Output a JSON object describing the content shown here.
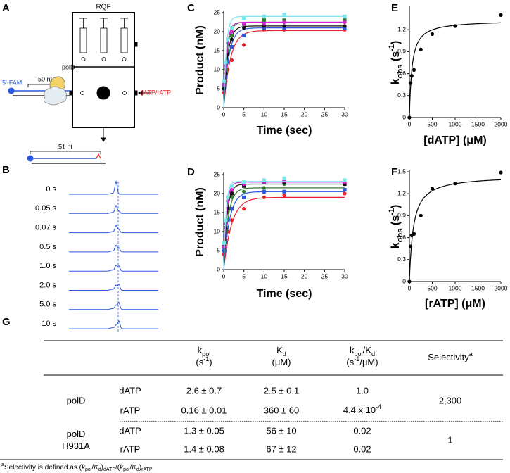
{
  "panel_labels": [
    "A",
    "B",
    "C",
    "D",
    "E",
    "F",
    "G"
  ],
  "diagram": {
    "instrument": "RQF",
    "label": "5'-FAM",
    "template_length": "50 nt",
    "enzyme": "polD",
    "nucleotide": "dATP/rATP",
    "product_length": "51 nt"
  },
  "gel_traces": {
    "labels": [
      "0 s",
      "0.05 s",
      "0.07 s",
      "0.5 s",
      "1.0 s",
      "2.0 s",
      "5.0 s",
      "10 s"
    ]
  },
  "chart_data": [
    {
      "type": "scatter",
      "fit_model": "exponential",
      "xlabel": "Time (sec)",
      "ylabel": "Product (nM)",
      "x": [
        0.05,
        0.5,
        1,
        2,
        5,
        10,
        15,
        30
      ],
      "xlim": [
        0,
        30
      ],
      "xticks": [
        0,
        5,
        10,
        15,
        20,
        25,
        30
      ],
      "ylim": [
        0,
        25
      ],
      "yticks": [
        0,
        5,
        10,
        15,
        20,
        25
      ],
      "series": [
        {
          "color": "#e8212a",
          "values": [
            4,
            7,
            10,
            12.5,
            16.5,
            20.5,
            20.5,
            20.5
          ],
          "fit": {
            "amplitude": 20.3,
            "rate": 0.6
          }
        },
        {
          "color": "#2a57e0",
          "values": [
            5,
            8,
            12,
            16,
            19,
            21,
            21,
            21
          ],
          "fit": {
            "amplitude": 21,
            "rate": 0.8
          }
        },
        {
          "color": "#111111",
          "values": [
            5,
            9,
            14,
            18,
            21,
            21.5,
            21.5,
            21.5
          ],
          "fit": {
            "amplitude": 21.5,
            "rate": 1.0
          }
        },
        {
          "color": "#2e7d32",
          "values": [
            6,
            10,
            15,
            19,
            22,
            23,
            23,
            23
          ],
          "fit": {
            "amplitude": 22.5,
            "rate": 1.2
          }
        },
        {
          "color": "#d61fd6",
          "values": [
            6,
            11,
            17,
            20,
            22,
            22,
            22.5,
            22.5
          ],
          "fit": {
            "amplitude": 22.5,
            "rate": 1.4
          }
        },
        {
          "color": "#7fe6ee",
          "values": [
            7,
            12,
            18,
            21,
            23.5,
            24,
            24.5,
            24
          ],
          "fit": {
            "amplitude": 24,
            "rate": 1.6
          }
        }
      ]
    },
    {
      "type": "scatter",
      "fit_model": "exponential",
      "xlabel": "Time (sec)",
      "ylabel": "Product (nM)",
      "x": [
        0.05,
        0.5,
        1,
        2,
        5,
        10,
        15,
        30
      ],
      "xlim": [
        0,
        30
      ],
      "xticks": [
        0,
        5,
        10,
        15,
        20,
        25,
        30
      ],
      "ylim": [
        0,
        25
      ],
      "yticks": [
        0,
        5,
        10,
        15,
        20,
        25
      ],
      "series": [
        {
          "color": "#e8212a",
          "values": [
            4,
            8,
            10,
            13,
            16,
            19,
            19.5,
            20
          ],
          "fit": {
            "amplitude": 19,
            "rate": 0.5
          }
        },
        {
          "color": "#2a57e0",
          "values": [
            5,
            9,
            13,
            16,
            19,
            20.5,
            20.5,
            21
          ],
          "fit": {
            "amplitude": 20.5,
            "rate": 0.7
          }
        },
        {
          "color": "#2e7d32",
          "values": [
            6,
            10,
            15,
            19,
            20.5,
            21.5,
            22.5,
            22.5
          ],
          "fit": {
            "amplitude": 21.5,
            "rate": 0.9
          }
        },
        {
          "color": "#111111",
          "values": [
            6,
            11,
            16,
            20,
            22,
            23,
            23,
            22.5
          ],
          "fit": {
            "amplitude": 22.5,
            "rate": 1.2
          }
        },
        {
          "color": "#d61fd6",
          "values": [
            6,
            12,
            18,
            21,
            22.5,
            23,
            23.5,
            23
          ],
          "fit": {
            "amplitude": 23,
            "rate": 1.5
          }
        },
        {
          "color": "#7fe6ee",
          "values": [
            7,
            13,
            19,
            22,
            23,
            23.5,
            24,
            23.5
          ],
          "fit": {
            "amplitude": 23.2,
            "rate": 1.8
          }
        }
      ]
    },
    {
      "type": "scatter",
      "fit_model": "hyperbolic",
      "xlabel": "[dATP] (μM)",
      "ylabel": [
        {
          "t": "k"
        },
        {
          "sub": "obs"
        },
        {
          "t": " (s"
        },
        {
          "sup": "-1"
        },
        {
          "t": ")"
        }
      ],
      "x": [
        0,
        25,
        50,
        100,
        250,
        500,
        1000,
        2000
      ],
      "xlim": [
        0,
        2000
      ],
      "xticks": [
        0,
        500,
        1000,
        1500,
        2000
      ],
      "ylim": [
        0,
        1.5
      ],
      "yticks": [
        0,
        0.3,
        0.6,
        0.9,
        1.2
      ],
      "series": [
        {
          "color": "#000000",
          "values": [
            0,
            0.47,
            0.57,
            0.65,
            0.93,
            1.14,
            1.25,
            1.4
          ],
          "fit": {
            "kpol": 1.33,
            "kd": 55
          }
        }
      ]
    },
    {
      "type": "scatter",
      "fit_model": "hyperbolic",
      "xlabel": "[rATP] (μM)",
      "ylabel": [
        {
          "t": "k"
        },
        {
          "sub": "obs"
        },
        {
          "t": " (s"
        },
        {
          "sup": "-1"
        },
        {
          "t": ")"
        }
      ],
      "x": [
        0,
        25,
        50,
        100,
        250,
        500,
        1000,
        2000
      ],
      "xlim": [
        0,
        2000
      ],
      "xticks": [
        0,
        500,
        1000,
        1500,
        2000
      ],
      "ylim": [
        0,
        1.5
      ],
      "yticks": [
        0,
        0.3,
        0.6,
        0.9,
        1.2,
        1.5
      ],
      "series": [
        {
          "color": "#000000",
          "values": [
            0,
            0.48,
            0.63,
            0.65,
            0.9,
            1.27,
            1.34,
            1.49
          ],
          "fit": {
            "kpol": 1.45,
            "kd": 85
          }
        }
      ]
    }
  ],
  "table": {
    "headers": [
      [
        [
          {
            "t": "k"
          },
          {
            "sub": "pol"
          }
        ],
        [
          {
            "t": "(s"
          },
          {
            "sup": "-1"
          },
          {
            "t": ")"
          }
        ]
      ],
      [
        [
          {
            "t": "K"
          },
          {
            "sub": "d"
          }
        ],
        [
          {
            "t": "(μM)"
          }
        ]
      ],
      [
        [
          {
            "t": "k"
          },
          {
            "sub": "pol"
          },
          {
            "t": "/K"
          },
          {
            "sub": "d"
          }
        ],
        [
          {
            "t": "(s"
          },
          {
            "sup": "-1"
          },
          {
            "t": "/μM)"
          }
        ]
      ],
      [
        [
          {
            "t": "Selectivity"
          },
          {
            "sup": "a"
          }
        ]
      ]
    ],
    "groups": [
      {
        "name": [
          "polD"
        ],
        "selectivity": "2,300",
        "rows": [
          [
            "dATP",
            "2.6 ± 0.7",
            "2.5 ± 0.1",
            "1.0"
          ],
          [
            "rATP",
            "0.16 ± 0.01",
            "360 ± 60",
            [
              {
                "t": "4.4 x 10"
              },
              {
                "sup": "-4"
              }
            ]
          ]
        ]
      },
      {
        "name": [
          "polD",
          "H931A"
        ],
        "selectivity": "1",
        "rows": [
          [
            "dATP",
            "1.3 ± 0.05",
            "56 ± 10",
            "0.02"
          ],
          [
            "rATP",
            "1.4 ± 0.08",
            "67 ± 12",
            "0.02"
          ]
        ]
      }
    ],
    "footnote": [
      {
        "sup": "a"
      },
      {
        "t": "Selectivity is defined as ("
      },
      {
        "i": "k"
      },
      {
        "sub": "pol"
      },
      {
        "t": "/"
      },
      {
        "i": "K"
      },
      {
        "sub": "d"
      },
      {
        "t": ")"
      },
      {
        "sub": "dATP"
      },
      {
        "t": "/("
      },
      {
        "i": "k"
      },
      {
        "sub": "pol"
      },
      {
        "t": "/"
      },
      {
        "i": "K"
      },
      {
        "sub": "d"
      },
      {
        "t": ")"
      },
      {
        "sub": "rATP"
      }
    ]
  }
}
